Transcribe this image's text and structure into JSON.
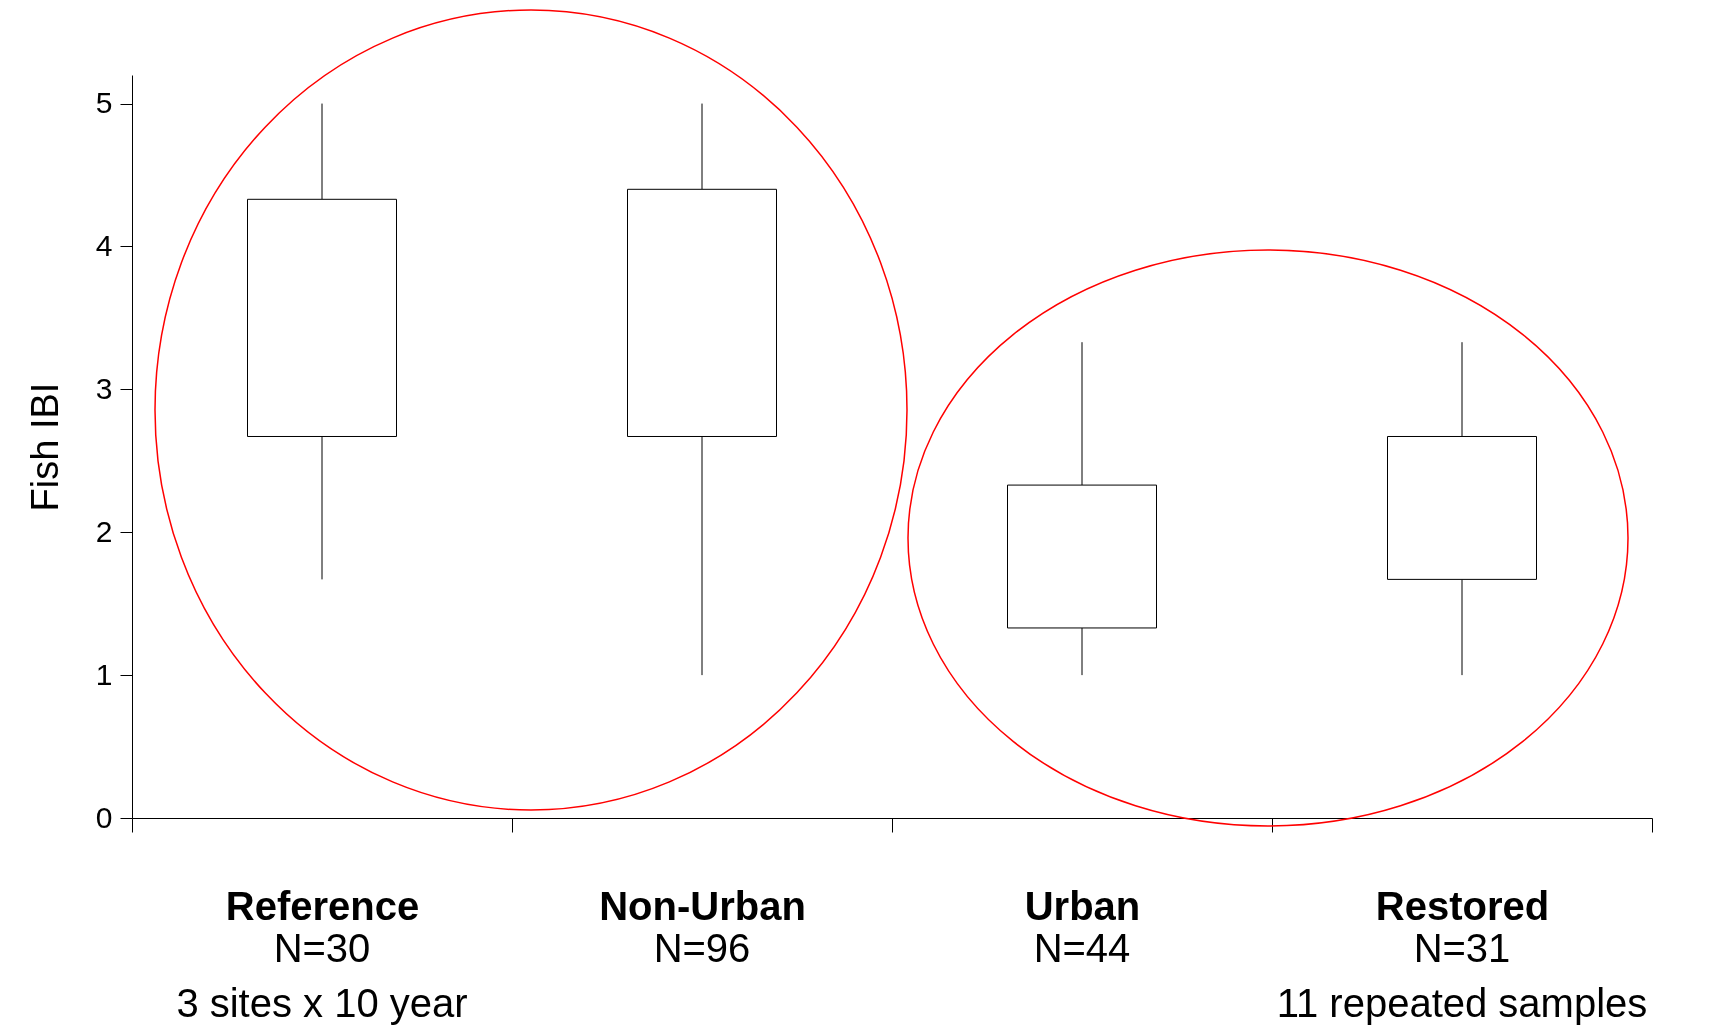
{
  "chart_data": {
    "type": "box",
    "ylabel": "Fish IBI",
    "categories": [
      "Reference",
      "Non-Urban",
      "Urban",
      "Restored"
    ],
    "boxes": [
      {
        "low": 1.67,
        "q1": 2.67,
        "q3": 4.33,
        "high": 5
      },
      {
        "low": 1,
        "q1": 2.67,
        "q3": 4.4,
        "high": 5
      },
      {
        "low": 1,
        "q1": 1.33,
        "q3": 2.33,
        "high": 3.33
      },
      {
        "low": 1,
        "q1": 1.67,
        "q3": 2.67,
        "high": 3.33
      }
    ],
    "ylim": [
      0,
      5.2
    ],
    "yticks": [
      0,
      1,
      2,
      3,
      4,
      5
    ],
    "grid": false,
    "annotations": [
      "N=30\n3 sites x 10 year",
      "N=96",
      "N=44",
      "N=31\n11 repeated samples"
    ]
  }
}
